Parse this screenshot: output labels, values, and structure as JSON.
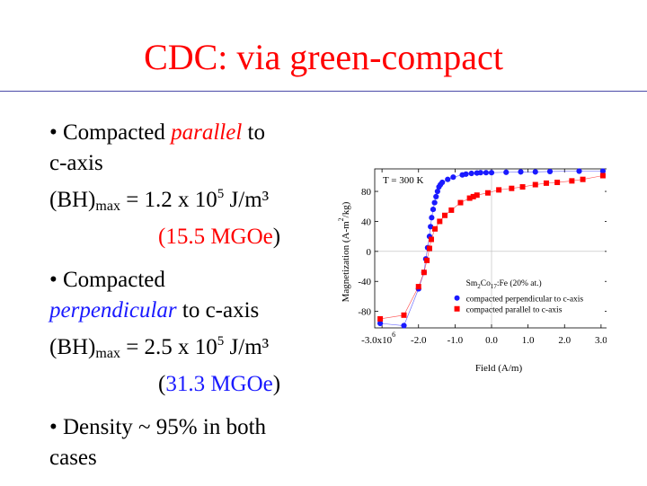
{
  "slide": {
    "title": "CDC: via green-compact"
  },
  "bullets": [
    {
      "line1_pre": "• Compacted ",
      "line1_em": "parallel",
      "line1_post": " to",
      "line2": "c-axis",
      "bh_main": "(BH)",
      "bh_sub": "max",
      "bh_eq": " = 1.2 x 10",
      "bh_exp": "5",
      "bh_unit": " J/m³",
      "mgoe_open": "(",
      "mgoe_val": "15.5 MGOe",
      "mgoe_close": ")"
    },
    {
      "line1": "• Compacted",
      "line2_em": "perpendicular",
      "line2_post": " to c-axis",
      "bh_main": "(BH)",
      "bh_sub": "max",
      "bh_eq": " = 2.5 x 10",
      "bh_exp": "5",
      "bh_unit": " J/m³",
      "mgoe_open": "(",
      "mgoe_val": "31.3 MGOe",
      "mgoe_close": ")"
    },
    {
      "line1": "• Density ~ 95% in both",
      "line2": "cases"
    }
  ],
  "colors": {
    "title": "#ff0000",
    "highlight_red": "#ff0000",
    "highlight_blue": "#1a1aff",
    "rule": "#4a4aa8",
    "series_perpendicular": "#1a1aff",
    "series_parallel": "#ff0000"
  },
  "chart_data": {
    "type": "scatter",
    "annotation": "T = 300 K",
    "xlabel": "Field (A/m)",
    "ylabel": "Magnetization (A-m",
    "ylabel_sup": "2",
    "ylabel_tail": "/kg)",
    "x_multiplier_label": "x10",
    "x_multiplier_exp": "6",
    "xlim": [
      -3.2,
      3.2
    ],
    "ylim": [
      -102,
      110
    ],
    "xticks": [
      -3.0,
      -2.0,
      -1.0,
      0.0,
      1.0,
      2.0,
      3.0
    ],
    "xtick_labels": [
      "-3.0",
      "-2.0",
      "-1.0",
      "0.0",
      "1.0",
      "2.0",
      "3.0"
    ],
    "yticks": [
      -80,
      -40,
      0,
      40,
      80
    ],
    "ytick_labels": [
      "-80",
      "-40",
      "0",
      "40",
      "80"
    ],
    "legend_position": "lower-right",
    "legend_title_parts": [
      "Sm",
      "2",
      "Co",
      "17",
      ":Fe (20% at.)"
    ],
    "series": [
      {
        "name": "compacted perpendicular to c-axis",
        "marker": "circle",
        "points": [
          [
            -3.05,
            -96
          ],
          [
            -2.4,
            -99
          ],
          [
            -2.0,
            -50
          ],
          [
            -1.85,
            -28
          ],
          [
            -1.8,
            -10
          ],
          [
            -1.75,
            5
          ],
          [
            -1.7,
            20
          ],
          [
            -1.67,
            33
          ],
          [
            -1.64,
            45
          ],
          [
            -1.6,
            56
          ],
          [
            -1.56,
            65
          ],
          [
            -1.52,
            73
          ],
          [
            -1.48,
            80
          ],
          [
            -1.44,
            86
          ],
          [
            -1.4,
            89
          ],
          [
            -1.35,
            92
          ],
          [
            -1.2,
            96
          ],
          [
            -1.05,
            99
          ],
          [
            -0.8,
            102
          ],
          [
            -0.7,
            103
          ],
          [
            -0.55,
            104
          ],
          [
            -0.4,
            104.5
          ],
          [
            -0.3,
            105
          ],
          [
            -0.15,
            105
          ],
          [
            0.0,
            105
          ],
          [
            0.4,
            105.5
          ],
          [
            0.8,
            106
          ],
          [
            1.2,
            106
          ],
          [
            1.6,
            106.5
          ],
          [
            2.4,
            107
          ],
          [
            3.05,
            107
          ]
        ]
      },
      {
        "name": "compacted parallel to c-axis",
        "marker": "square",
        "points": [
          [
            -3.05,
            -90
          ],
          [
            -2.4,
            -85
          ],
          [
            -2.0,
            -47
          ],
          [
            -1.85,
            -28
          ],
          [
            -1.77,
            -12
          ],
          [
            -1.7,
            4
          ],
          [
            -1.65,
            16
          ],
          [
            -1.55,
            30
          ],
          [
            -1.42,
            40
          ],
          [
            -1.28,
            48
          ],
          [
            -1.1,
            55
          ],
          [
            -0.85,
            65
          ],
          [
            -0.6,
            71
          ],
          [
            -0.5,
            73
          ],
          [
            -0.4,
            75
          ],
          [
            -0.1,
            78
          ],
          [
            0.2,
            82
          ],
          [
            0.55,
            84
          ],
          [
            0.85,
            86
          ],
          [
            1.2,
            89
          ],
          [
            1.5,
            91
          ],
          [
            1.8,
            92
          ],
          [
            2.2,
            94
          ],
          [
            2.5,
            96
          ],
          [
            3.05,
            101
          ]
        ]
      }
    ]
  }
}
